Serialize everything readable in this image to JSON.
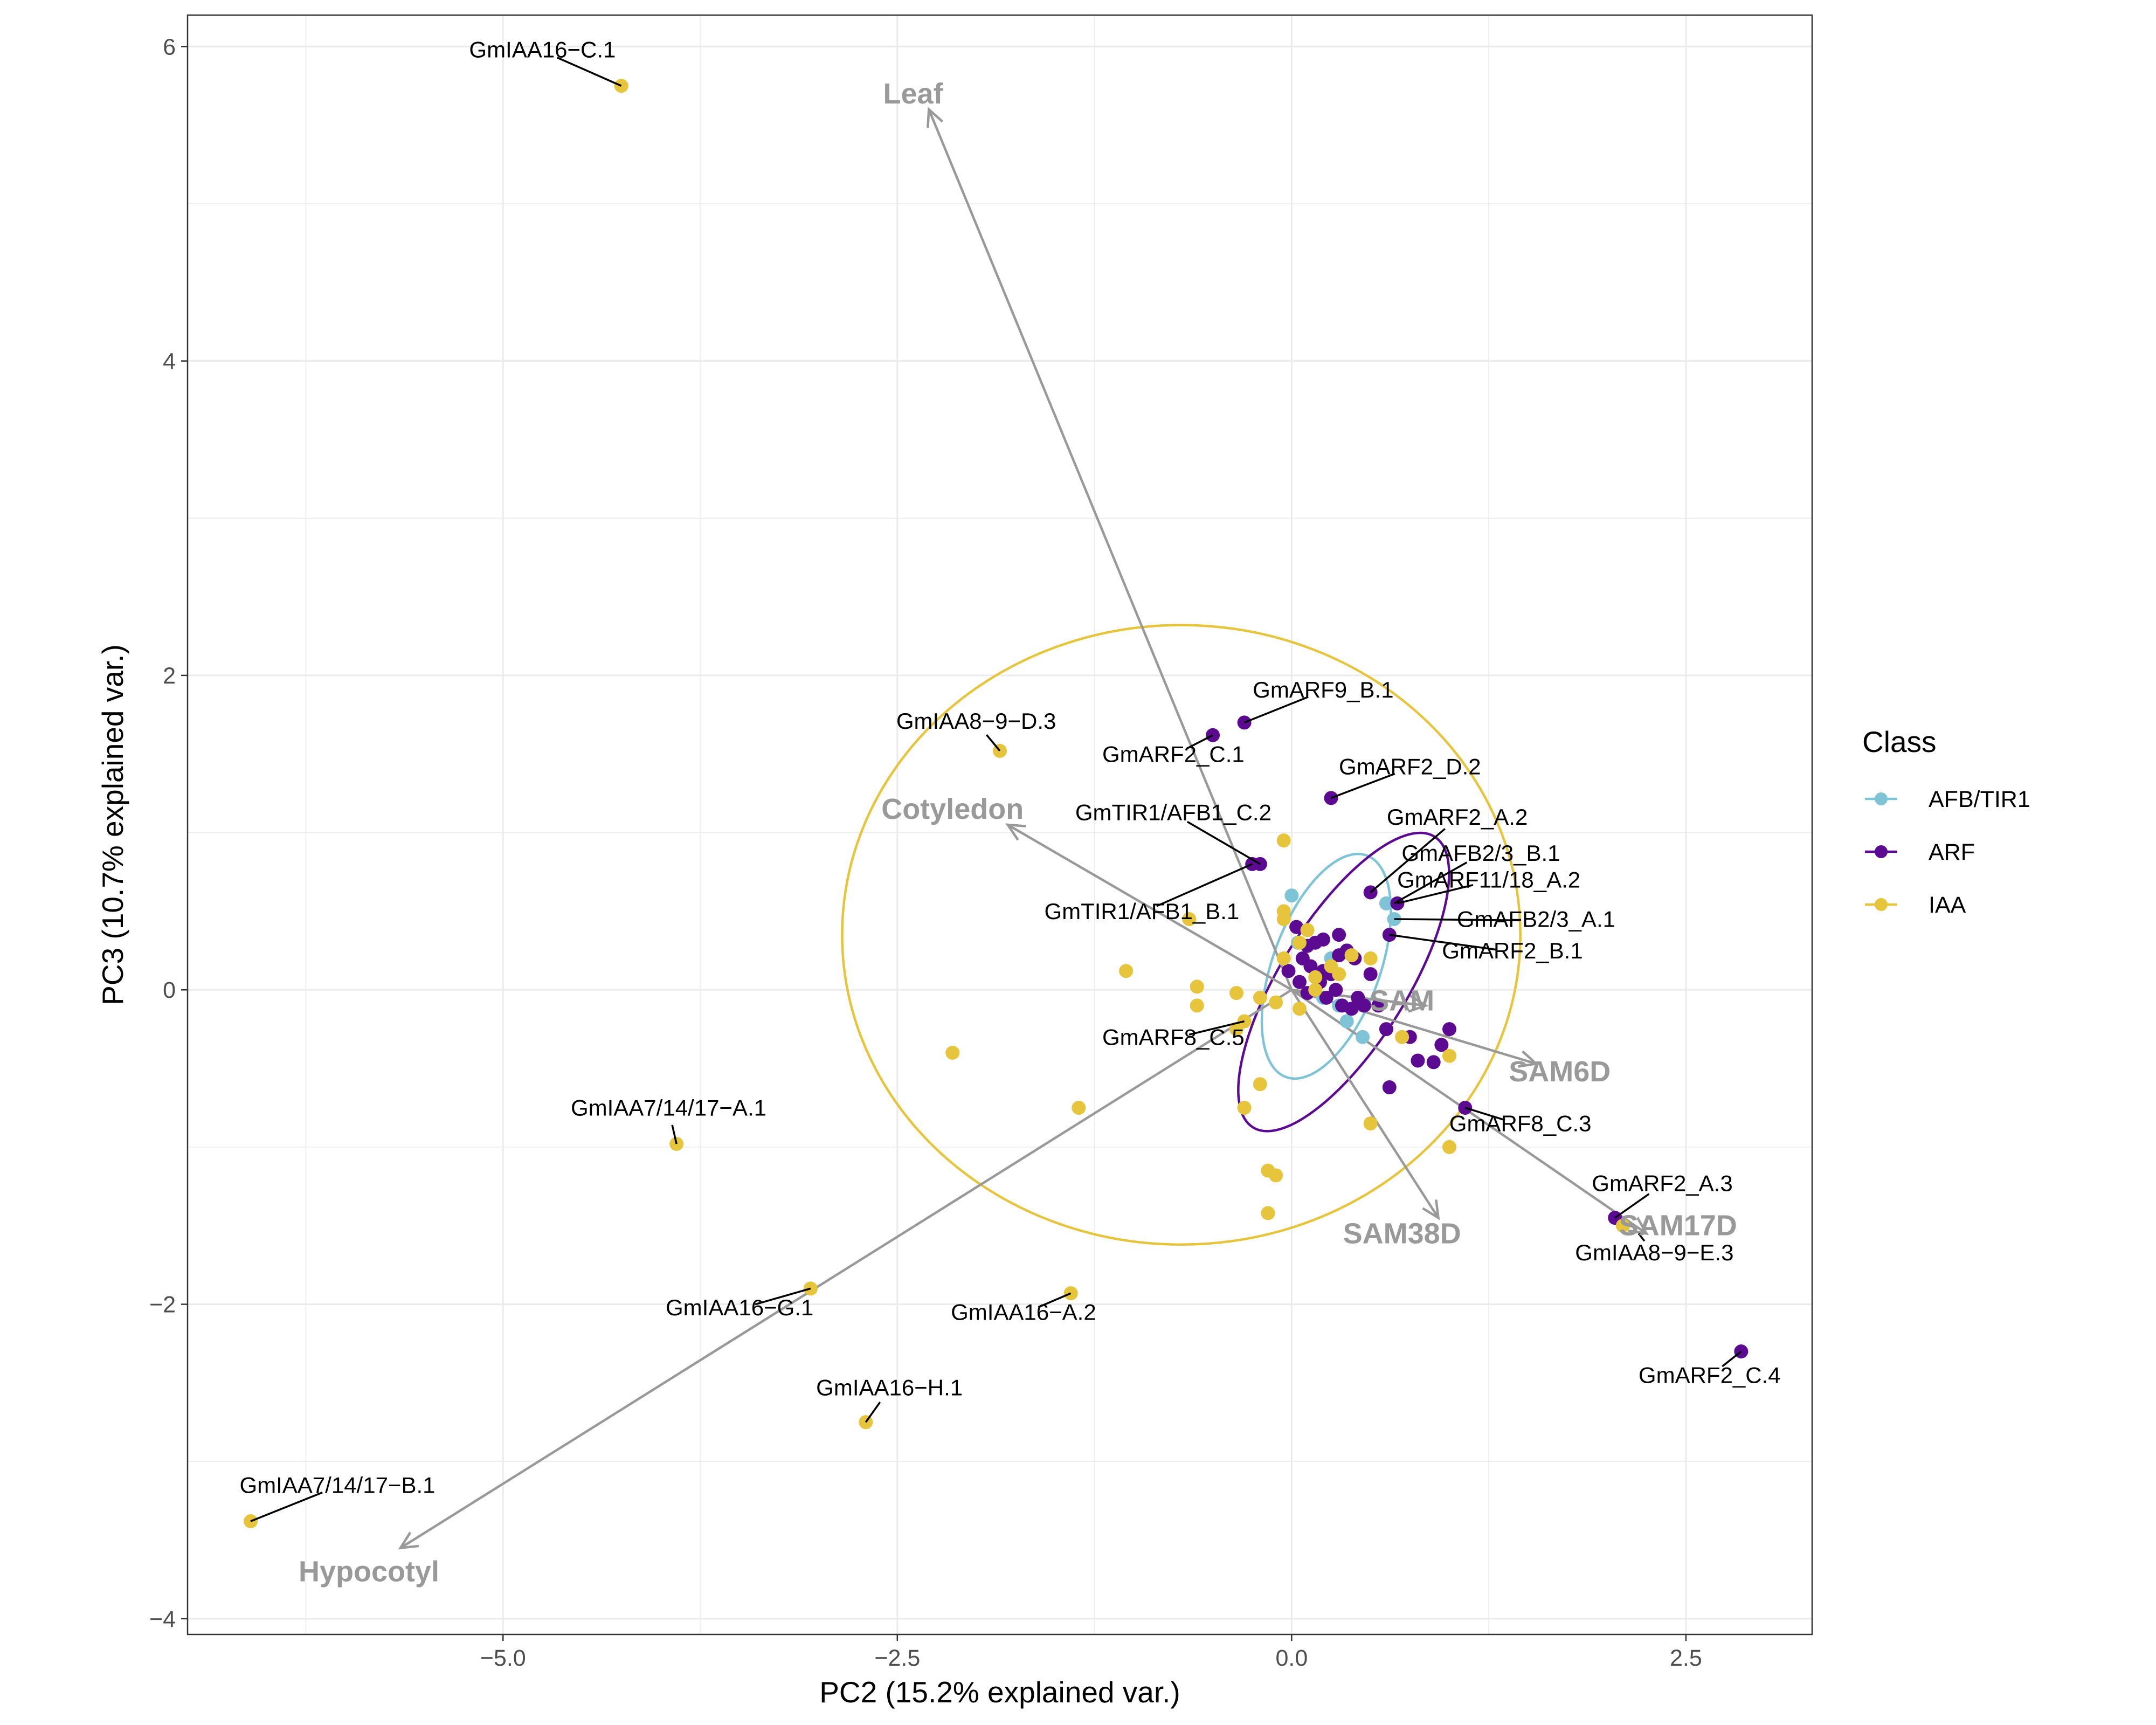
{
  "chart_data": {
    "type": "scatter",
    "title": "",
    "xlabel": "PC2 (15.2% explained var.)",
    "ylabel": "PC3 (10.7% explained var.)",
    "xlim": [
      -7.0,
      3.3
    ],
    "ylim": [
      -4.1,
      6.2
    ],
    "x_ticks": [
      -5.0,
      -2.5,
      0.0,
      2.5
    ],
    "y_ticks": [
      -4,
      -2,
      0,
      2,
      4,
      6
    ],
    "x_tick_labels": [
      "−5.0",
      "−2.5",
      "0.0",
      "2.5"
    ],
    "y_tick_labels": [
      "−4",
      "−2",
      "0",
      "2",
      "4",
      "6"
    ],
    "grid": true,
    "legend": {
      "title": "Class",
      "position": "right",
      "entries": [
        {
          "name": "AFB/TIR1",
          "color": "#7ec3d6"
        },
        {
          "name": "ARF",
          "color": "#5b0a91"
        },
        {
          "name": "IAA",
          "color": "#e6c43c"
        }
      ]
    },
    "series": [
      {
        "name": "AFB/TIR1",
        "color": "#7ec3d6",
        "x": [
          0.0,
          0.04,
          0.25,
          0.6,
          0.65,
          0.3,
          0.35,
          0.2,
          0.45
        ],
        "y": [
          0.6,
          0.3,
          0.2,
          0.55,
          0.45,
          -0.1,
          -0.2,
          -0.05,
          -0.3
        ],
        "ellipse": {
          "cx": 0.22,
          "cy": 0.15,
          "rx": 0.34,
          "ry": 0.75,
          "rotation": 20
        }
      },
      {
        "name": "ARF",
        "color": "#5b0a91",
        "x": [
          -0.3,
          -0.5,
          0.25,
          0.5,
          0.67,
          0.62,
          0.9,
          1.1,
          2.05,
          2.85,
          -0.25,
          -0.2,
          0.03,
          0.1,
          0.15,
          0.2,
          0.3,
          0.35,
          0.4,
          0.5,
          0.07,
          0.12,
          0.18,
          0.22,
          0.25,
          0.28,
          0.32,
          0.38,
          0.42,
          0.46,
          0.55,
          0.6,
          0.75,
          0.8,
          0.95,
          1.0,
          0.62,
          0.05,
          0.1,
          0.2,
          0.3,
          -0.02
        ],
        "y": [
          1.7,
          1.62,
          1.22,
          0.62,
          0.55,
          0.35,
          -0.46,
          -0.75,
          -1.45,
          -2.3,
          0.8,
          0.8,
          0.4,
          0.28,
          0.3,
          0.32,
          0.35,
          0.25,
          0.2,
          0.1,
          0.2,
          0.15,
          0.05,
          -0.05,
          0.1,
          0.0,
          -0.1,
          -0.12,
          -0.05,
          -0.1,
          -0.1,
          -0.25,
          -0.3,
          -0.45,
          -0.35,
          -0.25,
          -0.62,
          0.05,
          -0.02,
          0.12,
          0.22,
          0.12
        ],
        "ellipse": {
          "cx": 0.33,
          "cy": 0.05,
          "rx": 0.4,
          "ry": 1.09,
          "rotation": 32
        }
      },
      {
        "name": "IAA",
        "color": "#e6c43c",
        "x": [
          -4.25,
          -1.85,
          -3.9,
          -3.05,
          -1.4,
          -2.7,
          -6.6,
          -2.15,
          -1.05,
          -0.6,
          -0.6,
          -0.35,
          -0.2,
          -0.35,
          -0.3,
          -0.65,
          -0.2,
          -0.1,
          -0.15,
          -0.15,
          -1.35,
          -0.05,
          -0.05,
          -0.05,
          0.1,
          0.05,
          0.15,
          0.3,
          0.38,
          0.5,
          0.5,
          0.7,
          1.0,
          1.0,
          2.1,
          -0.05,
          -0.3,
          0.05,
          0.15,
          0.25,
          -0.1
        ],
        "y": [
          5.75,
          1.52,
          -0.98,
          -1.9,
          -1.93,
          -2.75,
          -3.38,
          -0.4,
          0.12,
          0.02,
          -0.1,
          -0.02,
          -0.05,
          -0.25,
          -0.75,
          0.45,
          -0.6,
          -1.18,
          -1.42,
          -1.15,
          -0.75,
          0.95,
          0.5,
          0.45,
          0.38,
          0.3,
          0.08,
          0.1,
          0.22,
          0.2,
          -0.85,
          -0.3,
          -1.0,
          -0.42,
          -1.5,
          0.2,
          -0.2,
          -0.12,
          0.0,
          0.15,
          -0.08
        ],
        "ellipse": {
          "cx": -0.7,
          "cy": 0.35,
          "rx": 2.15,
          "ry": 1.97,
          "rotation": 0
        }
      }
    ],
    "loadings": [
      {
        "name": "Leaf",
        "x": -2.3,
        "y": 5.6,
        "label_x": -2.4,
        "label_y": 5.7
      },
      {
        "name": "Cotyledon",
        "x": -1.8,
        "y": 1.05,
        "label_x": -2.15,
        "label_y": 1.15
      },
      {
        "name": "SAM",
        "x": 0.85,
        "y": -0.1,
        "label_x": 0.7,
        "label_y": -0.07
      },
      {
        "name": "SAM6D",
        "x": 1.55,
        "y": -0.47,
        "label_x": 1.7,
        "label_y": -0.52
      },
      {
        "name": "SAM17D",
        "x": 2.25,
        "y": -1.55,
        "label_x": 2.45,
        "label_y": -1.5
      },
      {
        "name": "SAM38D",
        "x": 0.93,
        "y": -1.45,
        "label_x": 0.7,
        "label_y": -1.55
      },
      {
        "name": "Hypocotyl",
        "x": -5.65,
        "y": -3.55,
        "label_x": -5.85,
        "label_y": -3.7
      }
    ],
    "annotations": [
      {
        "text": "GmIAA16−C.1",
        "x": -4.25,
        "y": 5.75,
        "label_x": -4.75,
        "label_y": 5.93
      },
      {
        "text": "GmIAA8−9−D.3",
        "x": -1.85,
        "y": 1.52,
        "label_x": -2.0,
        "label_y": 1.66
      },
      {
        "text": "GmARF9_B.1",
        "x": -0.3,
        "y": 1.7,
        "label_x": 0.2,
        "label_y": 1.86
      },
      {
        "text": "GmARF2_C.1",
        "x": -0.5,
        "y": 1.62,
        "label_x": -0.75,
        "label_y": 1.45
      },
      {
        "text": "GmARF2_D.2",
        "x": 0.25,
        "y": 1.22,
        "label_x": 0.75,
        "label_y": 1.37
      },
      {
        "text": "GmTIR1/AFB1_C.2",
        "x": -0.2,
        "y": 0.8,
        "label_x": -0.75,
        "label_y": 1.08
      },
      {
        "text": "GmARF2_A.2",
        "x": 0.5,
        "y": 0.62,
        "label_x": 1.05,
        "label_y": 1.05
      },
      {
        "text": "GmAFB2/3_B.1",
        "x": 0.65,
        "y": 0.55,
        "label_x": 1.2,
        "label_y": 0.82
      },
      {
        "text": "GmARF11/18_A.2",
        "x": 0.67,
        "y": 0.55,
        "label_x": 1.25,
        "label_y": 0.65
      },
      {
        "text": "GmAFB2/3_A.1",
        "x": 0.65,
        "y": 0.45,
        "label_x": 1.55,
        "label_y": 0.4
      },
      {
        "text": "GmTIR1/AFB1_B.1",
        "x": -0.25,
        "y": 0.8,
        "label_x": -0.95,
        "label_y": 0.45
      },
      {
        "text": "GmARF2_B.1",
        "x": 0.62,
        "y": 0.35,
        "label_x": 1.4,
        "label_y": 0.2
      },
      {
        "text": "GmARF8_C.5",
        "x": -0.3,
        "y": -0.2,
        "label_x": -0.75,
        "label_y": -0.35
      },
      {
        "text": "GmIAA7/14/17−A.1",
        "x": -3.9,
        "y": -0.98,
        "label_x": -3.95,
        "label_y": -0.8
      },
      {
        "text": "GmARF8_C.3",
        "x": 1.1,
        "y": -0.75,
        "label_x": 1.45,
        "label_y": -0.9
      },
      {
        "text": "GmARF2_A.3",
        "x": 2.05,
        "y": -1.45,
        "label_x": 2.35,
        "label_y": -1.28
      },
      {
        "text": "GmIAA8−9−E.3",
        "x": 2.2,
        "y": -1.55,
        "label_x": 2.3,
        "label_y": -1.72
      },
      {
        "text": "GmIAA16−G.1",
        "x": -3.05,
        "y": -1.9,
        "label_x": -3.5,
        "label_y": -2.07
      },
      {
        "text": "GmIAA16−A.2",
        "x": -1.4,
        "y": -1.93,
        "label_x": -1.7,
        "label_y": -2.1
      },
      {
        "text": "GmARF2_C.4",
        "x": 2.85,
        "y": -2.3,
        "label_x": 2.65,
        "label_y": -2.5
      },
      {
        "text": "GmIAA16−H.1",
        "x": -2.7,
        "y": -2.75,
        "label_x": -2.55,
        "label_y": -2.58
      },
      {
        "text": "GmIAA7/14/17−B.1",
        "x": -6.6,
        "y": -3.38,
        "label_x": -6.05,
        "label_y": -3.2
      }
    ]
  }
}
